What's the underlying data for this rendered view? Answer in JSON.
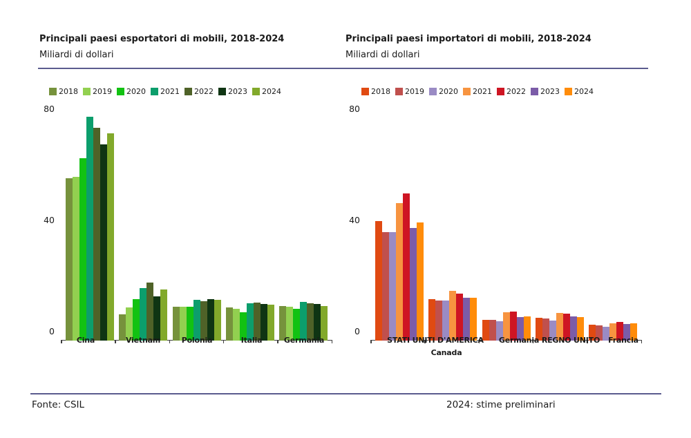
{
  "page": {
    "source": "Fonte: CSIL",
    "footnote": "2024: stime preliminari",
    "rule_color": "#5a5b8e",
    "background": "#ffffff"
  },
  "chart_data": [
    {
      "type": "bar",
      "title": "Principali paesi esportatori di mobili, 2018-2024",
      "subtitle": "Miliardi di dollari",
      "ylabel": "Miliardi di dollari",
      "ylim": [
        0,
        80
      ],
      "yticks": [
        0,
        40,
        80
      ],
      "grid": false,
      "legend_position": "top-left",
      "categories": [
        "Cina",
        "Vietnam",
        "Polonia",
        "Italia",
        "Germania"
      ],
      "series": [
        {
          "name": "2018",
          "color": "#76923C",
          "values": [
            55,
            6,
            8.7,
            8.4,
            8.9
          ]
        },
        {
          "name": "2019",
          "color": "#92D050",
          "values": [
            55.5,
            8.5,
            8.7,
            8,
            8.6
          ]
        },
        {
          "name": "2020",
          "color": "#12C212",
          "values": [
            62,
            11.5,
            8.6,
            6.8,
            8
          ]
        },
        {
          "name": "2021",
          "color": "#0C9E6C",
          "values": [
            77,
            15.5,
            11.1,
            9.9,
            10.4
          ]
        },
        {
          "name": "2022",
          "color": "#4F6228",
          "values": [
            73,
            17.5,
            10.6,
            10.1,
            9.9
          ]
        },
        {
          "name": "2023",
          "color": "#0F3513",
          "values": [
            67,
            12.5,
            11.4,
            9.7,
            9.6
          ]
        },
        {
          "name": "2024",
          "color": "#82A92B",
          "values": [
            71,
            15,
            11.1,
            9.4,
            9
          ]
        }
      ]
    },
    {
      "type": "bar",
      "title": "Principali paesi importatori di mobili, 2018-2024",
      "subtitle": "Miliardi di dollari",
      "ylabel": "Miliardi di dollari",
      "ylim": [
        0,
        80
      ],
      "yticks": [
        0,
        40,
        80
      ],
      "grid": false,
      "legend_position": "top-left",
      "categories": [
        "STATI UNITI D'AMERICA",
        "Canada",
        "Germania",
        "REGNO UNITO",
        "Francia"
      ],
      "series": [
        {
          "name": "2018",
          "color": "#E04A12",
          "values": [
            39.5,
            11.5,
            4,
            4.7,
            2.2
          ]
        },
        {
          "name": "2019",
          "color": "#C0504D",
          "values": [
            35.5,
            11,
            3.9,
            4.6,
            2.1
          ]
        },
        {
          "name": "2020",
          "color": "#9A8BC4",
          "values": [
            35.5,
            11,
            3.4,
            3.7,
            1.5
          ]
        },
        {
          "name": "2021",
          "color": "#F79440",
          "values": [
            46,
            14.5,
            6.7,
            6.5,
            2.7
          ]
        },
        {
          "name": "2022",
          "color": "#CE1523",
          "values": [
            49.5,
            13.5,
            6.9,
            6.3,
            3.2
          ]
        },
        {
          "name": "2023",
          "color": "#7B5CA8",
          "values": [
            37,
            12,
            5,
            5.3,
            2.5
          ]
        },
        {
          "name": "2024",
          "color": "#FF8C0A",
          "values": [
            39,
            12,
            5.1,
            4.9,
            2.7
          ]
        }
      ]
    }
  ]
}
